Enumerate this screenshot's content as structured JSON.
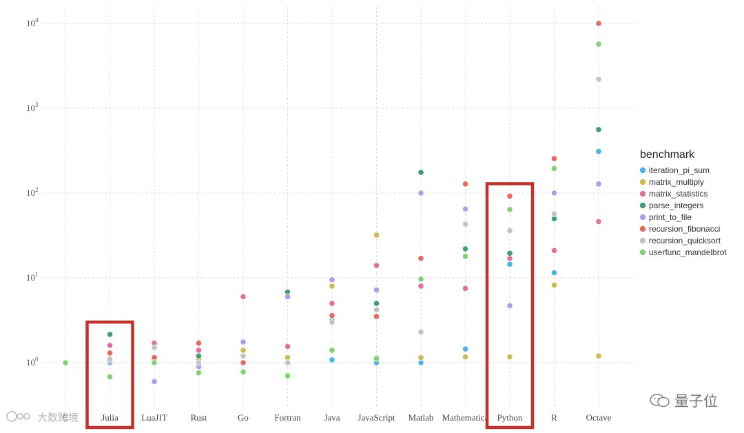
{
  "chart_data": {
    "type": "scatter",
    "y_scale": "log",
    "ylim": [
      0.6,
      10000
    ],
    "y_ticks": [
      {
        "base": "10",
        "exp": "0",
        "value": 1
      },
      {
        "base": "10",
        "exp": "1",
        "value": 10
      },
      {
        "base": "10",
        "exp": "2",
        "value": 100
      },
      {
        "base": "10",
        "exp": "3",
        "value": 1000
      },
      {
        "base": "10",
        "exp": "4",
        "value": 10000
      }
    ],
    "categories": [
      "C",
      "Julia",
      "LuaJIT",
      "Rust",
      "Go",
      "Fortran",
      "Java",
      "JavaScript",
      "Matlab",
      "Mathematica",
      "Python",
      "R",
      "Octave"
    ],
    "grid": true,
    "legend_position": "right",
    "legend_title": "benchmark",
    "series": [
      {
        "name": "iteration_pi_sum",
        "color": "#45b5ec",
        "values": [
          1.0,
          1.0,
          1.0,
          1.0,
          1.0,
          1.0,
          1.08,
          1.0,
          1.0,
          1.45,
          14.5,
          11.5,
          310
        ]
      },
      {
        "name": "matrix_multiply",
        "color": "#cdbc4b",
        "values": [
          1.0,
          1.1,
          1.1,
          1.1,
          1.4,
          1.15,
          8.0,
          32,
          1.15,
          1.17,
          1.17,
          8.2,
          1.2
        ]
      },
      {
        "name": "matrix_statistics",
        "color": "#e56e9b",
        "values": [
          1.0,
          1.6,
          1.7,
          1.4,
          6.0,
          1.55,
          5.0,
          14,
          8.0,
          7.5,
          17,
          21,
          46
        ]
      },
      {
        "name": "parse_integers",
        "color": "#3e9e7a",
        "values": [
          1.0,
          2.15,
          1.1,
          1.2,
          1.0,
          6.8,
          3.15,
          5.0,
          175,
          22,
          19.5,
          50,
          560
        ]
      },
      {
        "name": "print_to_file",
        "color": "#b29af0",
        "values": [
          1.0,
          1.05,
          0.6,
          0.9,
          1.75,
          6.0,
          9.5,
          7.2,
          100,
          65,
          4.7,
          100,
          128
        ]
      },
      {
        "name": "recursion_fibonacci",
        "color": "#e8695c",
        "values": [
          1.0,
          1.3,
          1.15,
          1.7,
          1.0,
          1.0,
          3.6,
          3.5,
          17,
          128,
          92,
          255,
          10000
        ]
      },
      {
        "name": "recursion_quicksort",
        "color": "#c3c3c3",
        "values": [
          1.0,
          1.1,
          1.5,
          1.0,
          1.2,
          1.0,
          3.0,
          4.2,
          2.3,
          43,
          36,
          57,
          2200
        ]
      },
      {
        "name": "userfunc_mandelbrot",
        "color": "#7ed370",
        "values": [
          1.0,
          0.68,
          1.0,
          0.76,
          0.78,
          0.7,
          1.4,
          1.12,
          9.7,
          18,
          64,
          195,
          5700
        ]
      }
    ],
    "highlight_boxes": [
      {
        "category": "Julia",
        "color": "#c4302b"
      },
      {
        "category": "Python",
        "color": "#c4302b"
      }
    ]
  },
  "watermarks": {
    "right": "量子位",
    "left": "大数跨境"
  }
}
